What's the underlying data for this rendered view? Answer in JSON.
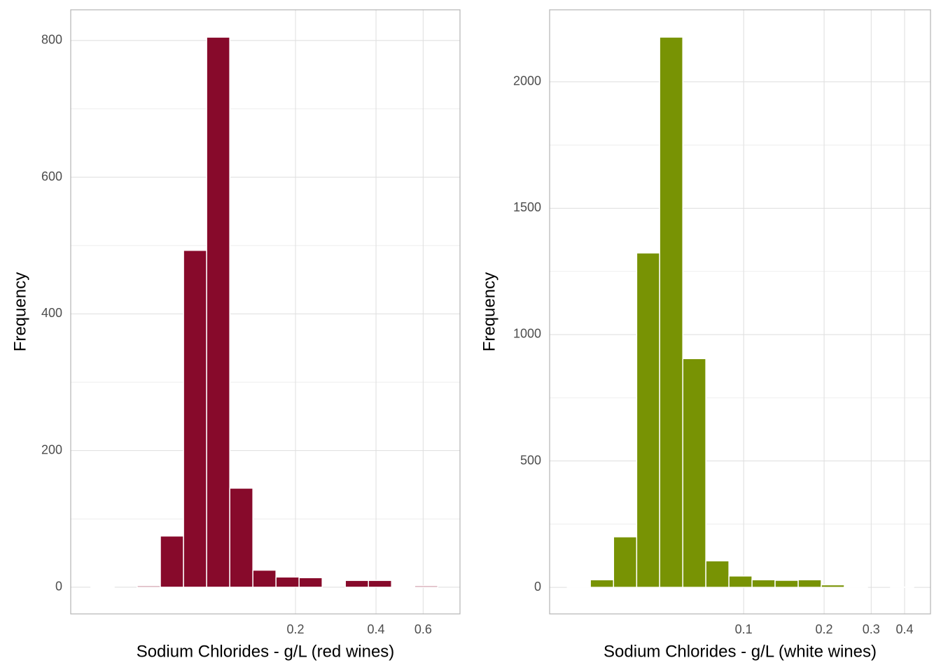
{
  "chart_data": [
    {
      "type": "histogram",
      "xlabel": "Sodium Chlorides - g/L (red wines)",
      "ylabel": "Frequency",
      "color": "#870a2b",
      "bins": [
        0.0344,
        0.042,
        0.0512,
        0.0625,
        0.0763,
        0.0931,
        0.1136,
        0.1386,
        0.1691,
        0.2063,
        0.2517,
        0.3071,
        0.3747,
        0.4572,
        0.5578,
        0.6805
      ],
      "values": [
        1,
        0,
        2,
        75,
        493,
        805,
        145,
        25,
        15,
        14,
        0,
        10,
        10,
        1,
        2
      ],
      "xscale": "log",
      "xlim": [
        0.0289,
        0.824
      ],
      "xticks": [
        0.2,
        0.4,
        0.6
      ],
      "ylim": [
        -39,
        845
      ],
      "yticks": [
        0,
        200,
        400,
        600,
        800
      ],
      "grid": true
    },
    {
      "type": "histogram",
      "xlabel": "Sodium Chlorides - g/L (white wines)",
      "ylabel": "Frequency",
      "color": "#789304",
      "bins": [
        0.0219,
        0.0267,
        0.0326,
        0.0398,
        0.0485,
        0.0592,
        0.0722,
        0.0881,
        0.1075,
        0.1311,
        0.16,
        0.1952,
        0.2381,
        0.2905,
        0.3544,
        0.4324
      ],
      "values": [
        1,
        30,
        200,
        1323,
        2177,
        905,
        105,
        45,
        30,
        28,
        30,
        10,
        2,
        0,
        1
      ],
      "xscale": "log",
      "xlim": [
        0.0188,
        0.5
      ],
      "xticks": [
        0.1,
        0.2,
        0.3,
        0.4
      ],
      "ylim": [
        -105,
        2285
      ],
      "yticks": [
        0,
        500,
        1000,
        1500,
        2000
      ],
      "grid": true
    }
  ]
}
